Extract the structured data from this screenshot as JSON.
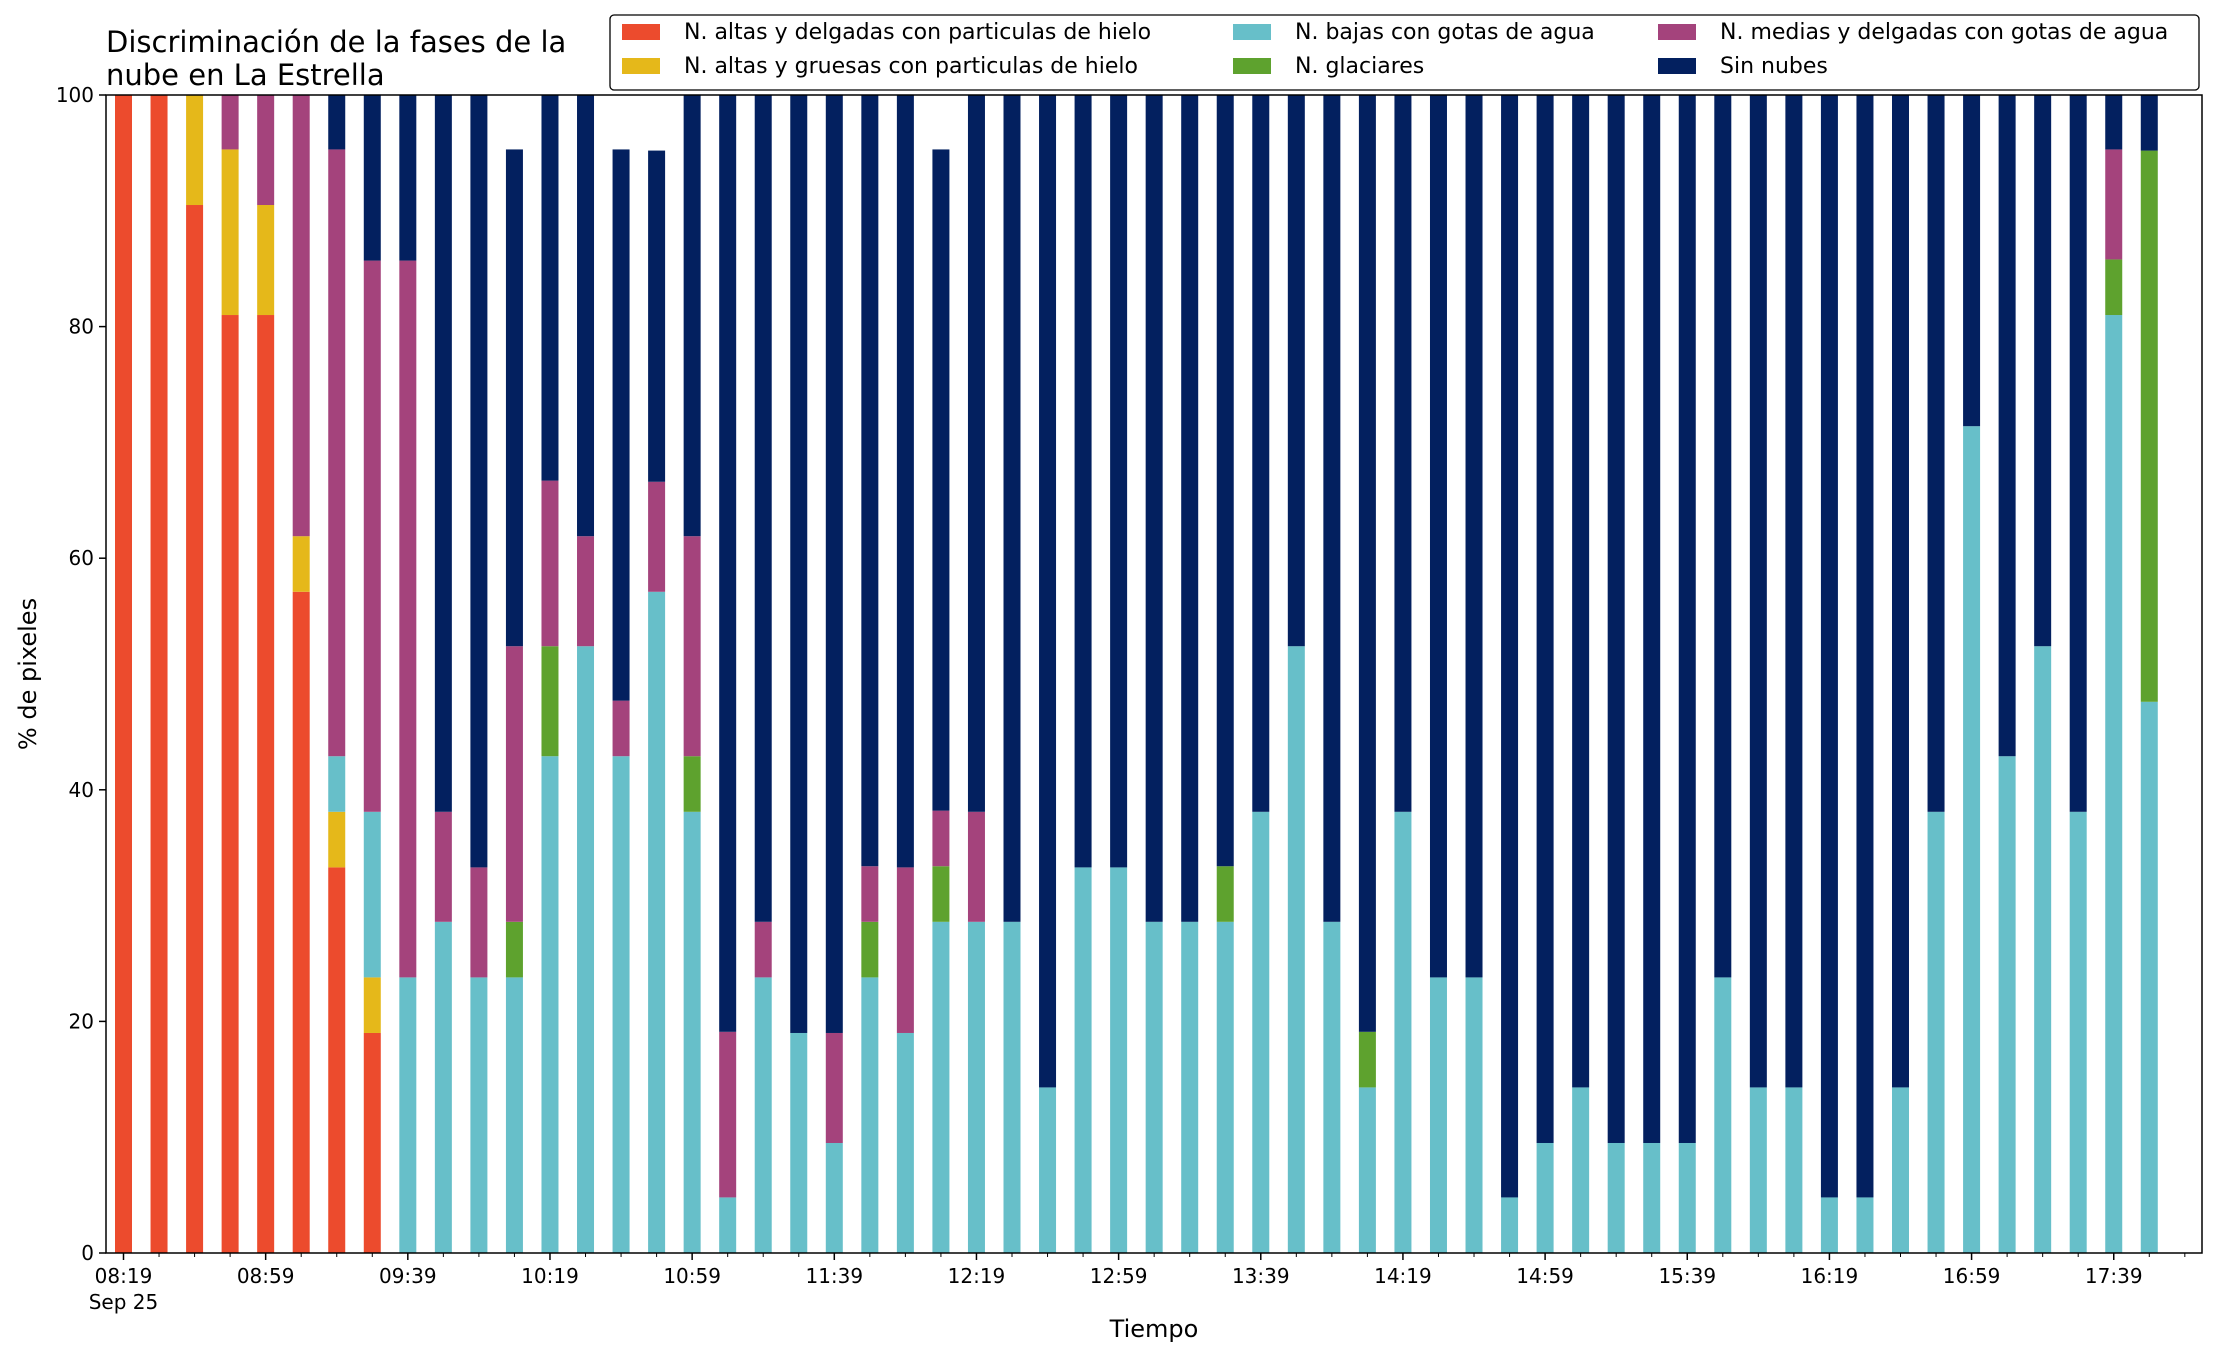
{
  "chart_data": {
    "type": "bar",
    "stacked": true,
    "title_lines": [
      "Discriminación de la fases de la",
      "nube en La Estrella"
    ],
    "xlabel": "Tiempo",
    "ylabel": "% de pixeles",
    "ylim": [
      0,
      100
    ],
    "y_ticks": [
      0,
      20,
      40,
      60,
      80,
      100
    ],
    "x_ticks": [
      {
        "index": 0,
        "label": "08:19",
        "sublabel": "Sep 25"
      },
      {
        "index": 4,
        "label": "08:59"
      },
      {
        "index": 8,
        "label": "09:39"
      },
      {
        "index": 12,
        "label": "10:19"
      },
      {
        "index": 16,
        "label": "10:59"
      },
      {
        "index": 20,
        "label": "11:39"
      },
      {
        "index": 24,
        "label": "12:19"
      },
      {
        "index": 28,
        "label": "12:59"
      },
      {
        "index": 32,
        "label": "13:39"
      },
      {
        "index": 36,
        "label": "14:19"
      },
      {
        "index": 40,
        "label": "14:59"
      },
      {
        "index": 44,
        "label": "15:39"
      },
      {
        "index": 48,
        "label": "16:19"
      },
      {
        "index": 52,
        "label": "16:59"
      },
      {
        "index": 56,
        "label": "17:39"
      }
    ],
    "time_step_minutes": 10,
    "grid": false,
    "legend_position": "top-right",
    "series": [
      {
        "name": "N. altas y delgadas con particulas de hielo",
        "color": "#ec4b2d",
        "values": [
          100,
          100,
          90.5,
          81,
          81,
          57.1,
          33.3,
          19,
          0,
          0,
          0,
          0,
          0,
          0,
          0,
          0,
          0,
          0,
          0,
          0,
          0,
          0,
          0,
          0,
          0,
          0,
          0,
          0,
          0,
          0,
          0,
          0,
          0,
          0,
          0,
          0,
          0,
          0,
          0,
          0,
          0,
          0,
          0,
          0,
          0,
          0,
          0,
          0,
          0,
          0,
          0,
          0,
          0,
          0,
          0,
          0,
          0,
          0
        ]
      },
      {
        "name": "N. altas y gruesas con particulas de hielo",
        "color": "#e5b81a",
        "values": [
          0,
          0,
          9.5,
          14.3,
          9.5,
          4.8,
          4.8,
          4.8,
          0,
          0,
          0,
          0,
          0,
          0,
          0,
          0,
          0,
          0,
          0,
          0,
          0,
          0,
          0,
          0,
          0,
          0,
          0,
          0,
          0,
          0,
          0,
          0,
          0,
          0,
          0,
          0,
          0,
          0,
          0,
          0,
          0,
          0,
          0,
          0,
          0,
          0,
          0,
          0,
          0,
          0,
          0,
          0,
          0,
          0,
          0,
          0,
          0,
          0
        ]
      },
      {
        "name": "N. bajas con gotas de agua",
        "color": "#67bfc9",
        "values": [
          0,
          0,
          0,
          0,
          0,
          0,
          4.8,
          14.3,
          23.8,
          28.6,
          23.8,
          23.8,
          42.9,
          52.4,
          42.9,
          57.1,
          38.1,
          4.8,
          23.8,
          19,
          9.5,
          23.8,
          19,
          28.6,
          28.6,
          28.6,
          14.3,
          33.3,
          33.3,
          28.6,
          28.6,
          28.6,
          38.1,
          52.4,
          28.6,
          14.3,
          38.1,
          23.8,
          23.8,
          4.8,
          9.5,
          14.3,
          9.5,
          9.5,
          9.5,
          23.8,
          14.3,
          14.3,
          4.8,
          4.8,
          14.3,
          38.1,
          71.4,
          42.9,
          52.4,
          38.1,
          81,
          47.6
        ]
      },
      {
        "name": "N. glaciares",
        "color": "#5ea22e",
        "values": [
          0,
          0,
          0,
          0,
          0,
          0,
          0,
          0,
          0,
          0,
          0,
          4.8,
          9.5,
          0,
          0,
          0,
          4.8,
          0,
          0,
          0,
          0,
          4.8,
          0,
          4.8,
          0,
          0,
          0,
          0,
          0,
          0,
          0,
          4.8,
          0,
          0,
          0,
          4.8,
          0,
          0,
          0,
          0,
          0,
          0,
          0,
          0,
          0,
          0,
          0,
          0,
          0,
          0,
          0,
          0,
          0,
          0,
          0,
          0,
          4.8,
          47.6
        ]
      },
      {
        "name": "N. medias y delgadas con gotas de agua",
        "color": "#a4437c",
        "values": [
          0,
          0,
          0,
          4.8,
          9.5,
          38.1,
          52.4,
          47.6,
          61.9,
          9.5,
          9.5,
          23.8,
          14.3,
          9.5,
          4.8,
          9.5,
          19,
          14.3,
          4.8,
          0,
          9.5,
          4.8,
          14.3,
          4.8,
          9.5,
          0,
          0,
          0,
          0,
          0,
          0,
          0,
          0,
          0,
          0,
          0,
          0,
          0,
          0,
          0,
          0,
          0,
          0,
          0,
          0,
          0,
          0,
          0,
          0,
          0,
          0,
          0,
          0,
          0,
          0,
          0,
          9.5,
          0
        ]
      },
      {
        "name": "Sin nubes",
        "color": "#03205f",
        "values": [
          0,
          0,
          0,
          0,
          0,
          0,
          4.8,
          14.3,
          14.3,
          61.9,
          66.7,
          42.9,
          33.3,
          38.1,
          47.6,
          28.6,
          38.1,
          81,
          71.4,
          81,
          81,
          66.7,
          66.7,
          57.1,
          61.9,
          71.4,
          85.7,
          66.7,
          66.7,
          71.4,
          71.4,
          66.7,
          61.9,
          47.6,
          71.4,
          81,
          61.9,
          76.2,
          76.2,
          95.2,
          90.5,
          85.7,
          90.5,
          90.5,
          90.5,
          76.2,
          85.7,
          85.7,
          95.2,
          95.2,
          85.7,
          61.9,
          28.6,
          57.1,
          47.6,
          61.9,
          4.8,
          4.8
        ]
      }
    ]
  }
}
